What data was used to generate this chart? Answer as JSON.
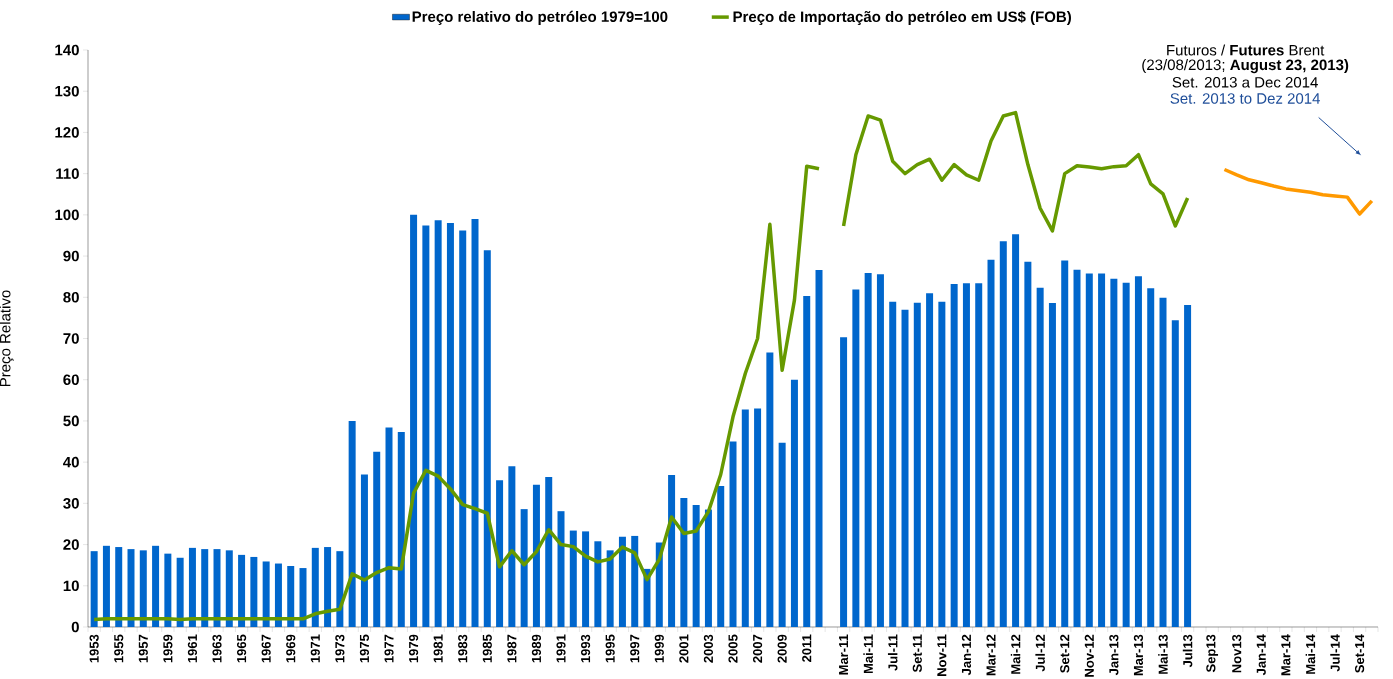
{
  "chart_data": {
    "type": "bar",
    "ylabel": "Preço Relativo",
    "categories": [
      "1953",
      null,
      "1955",
      null,
      "1957",
      null,
      "1959",
      null,
      "1961",
      null,
      "1963",
      null,
      "1965",
      null,
      "1967",
      null,
      "1969",
      null,
      "1971",
      null,
      "1973",
      null,
      "1975",
      null,
      "1977",
      null,
      "1979",
      null,
      "1981",
      null,
      "1983",
      null,
      "1985",
      null,
      "1987",
      null,
      "1989",
      null,
      "1991",
      null,
      "1993",
      null,
      "1995",
      null,
      "1997",
      null,
      "1999",
      null,
      "2001",
      null,
      "2003",
      null,
      "2005",
      null,
      "2007",
      null,
      "2009",
      null,
      "2011",
      null,
      null,
      "Mar-11",
      null,
      "Mai-11",
      null,
      "Jul-11",
      null,
      "Set-11",
      null,
      "Nov-11",
      null,
      "Jan-12",
      null,
      "Mar-12",
      null,
      "Mai-12",
      null,
      "Jul-12",
      null,
      "Set-12",
      null,
      "Nov-12",
      null,
      "Jan-13",
      null,
      "Mar-13",
      null,
      "Mai-13",
      null,
      "Jul13",
      null,
      "Sep13",
      null,
      "Nov13",
      null,
      "Jan-14",
      null,
      "Mar-14",
      null,
      "Mai-14",
      null,
      "Jul-14",
      null,
      "Set-14",
      null
    ],
    "series": [
      {
        "name": "Preço relativo do petróleo 1979=100",
        "color": "#0066cc",
        "values": [
          18.4,
          19.7,
          19.4,
          18.9,
          18.6,
          19.7,
          17.8,
          16.8,
          19.2,
          18.9,
          18.9,
          18.6,
          17.5,
          17,
          15.9,
          15.4,
          14.8,
          14.3,
          19.2,
          19.4,
          18.4,
          50,
          37,
          42.5,
          48.4,
          47.3,
          100,
          97.4,
          98.7,
          98,
          96.2,
          99,
          91.4,
          35.6,
          39,
          28.6,
          34.5,
          36.4,
          28.1,
          23.4,
          23.2,
          20.8,
          18.6,
          21.9,
          22.1,
          14.1,
          20.5,
          36.9,
          31.3,
          29.6,
          28.5,
          34.2,
          45,
          52.8,
          53,
          66.6,
          44.7,
          60,
          80.3,
          86.6,
          null,
          70.3,
          81.9,
          85.9,
          85.6,
          78.9,
          77,
          78.7,
          81,
          78.9,
          83.2,
          83.4,
          83.4,
          89.1,
          93.6,
          95.3,
          88.6,
          82.3,
          78.6,
          88.9,
          86.7,
          85.8,
          85.8,
          84.5,
          83.5,
          85.1,
          82.2,
          79.9,
          74.4,
          78.1,
          null,
          null,
          null,
          null,
          null,
          null,
          null,
          null,
          null,
          null,
          null,
          null,
          null,
          null,
          null
        ]
      },
      {
        "name": "Preço de Importação do petróleo em US$ (FOB)",
        "type": "line",
        "color": "#669900",
        "values": [
          1.8,
          2,
          2,
          2,
          2,
          2,
          2,
          1.8,
          2,
          2,
          2,
          2,
          2,
          2,
          2,
          2,
          2,
          2,
          3.2,
          3.8,
          4.3,
          12.9,
          11.4,
          13.2,
          14.4,
          14.1,
          32.5,
          38,
          36.6,
          33.5,
          29.7,
          28.7,
          27.6,
          14.6,
          18.5,
          15.1,
          18.3,
          23.6,
          20,
          19.5,
          17.2,
          15.8,
          16.5,
          19.4,
          18,
          11.5,
          16.4,
          26.7,
          22.7,
          23.3,
          28,
          37,
          51,
          61.5,
          70,
          97.7,
          62.3,
          79.3,
          111.8,
          111.2,
          null,
          97.3,
          114.6,
          124,
          123,
          113,
          110,
          112.2,
          113.5,
          108.4,
          112.2,
          109.7,
          108.4,
          117.9,
          124,
          124.8,
          112.2,
          101.6,
          96.1,
          110,
          111.9,
          111.6,
          111.2,
          111.7,
          111.9,
          114.6,
          107.5,
          105.1,
          97.3,
          104.1,
          null,
          null,
          null,
          null,
          null,
          null,
          null,
          null,
          null,
          null,
          null,
          null,
          null,
          null,
          null
        ]
      },
      {
        "type": "line",
        "color": "#ff9900",
        "values": [
          null,
          null,
          null,
          null,
          null,
          null,
          null,
          null,
          null,
          null,
          null,
          null,
          null,
          null,
          null,
          null,
          null,
          null,
          null,
          null,
          null,
          null,
          null,
          null,
          null,
          null,
          null,
          null,
          null,
          null,
          null,
          null,
          null,
          null,
          null,
          null,
          null,
          null,
          null,
          null,
          null,
          null,
          null,
          null,
          null,
          null,
          null,
          null,
          null,
          null,
          null,
          null,
          null,
          null,
          null,
          null,
          null,
          null,
          null,
          null,
          null,
          null,
          null,
          null,
          null,
          null,
          null,
          null,
          null,
          null,
          null,
          null,
          null,
          null,
          null,
          null,
          null,
          null,
          null,
          null,
          null,
          null,
          null,
          null,
          null,
          null,
          null,
          null,
          null,
          null,
          null,
          null,
          111,
          109.7,
          108.5,
          107.8,
          107,
          106.3,
          105.9,
          105.5,
          104.9,
          104.6,
          104.3,
          100.2,
          103.4
        ]
      }
    ],
    "ylim": [
      0,
      140
    ],
    "yticks": [
      0,
      10,
      20,
      30,
      40,
      50,
      60,
      70,
      80,
      90,
      100,
      110,
      120,
      130,
      140
    ],
    "legend": "top",
    "annotations": [
      "Futuros / **Futures** Brent",
      "(23/08/2013; **August 23, 2013)**",
      "Set. 2013 a Dec 2014",
      "Set. 2013 to Dez 2014"
    ]
  }
}
